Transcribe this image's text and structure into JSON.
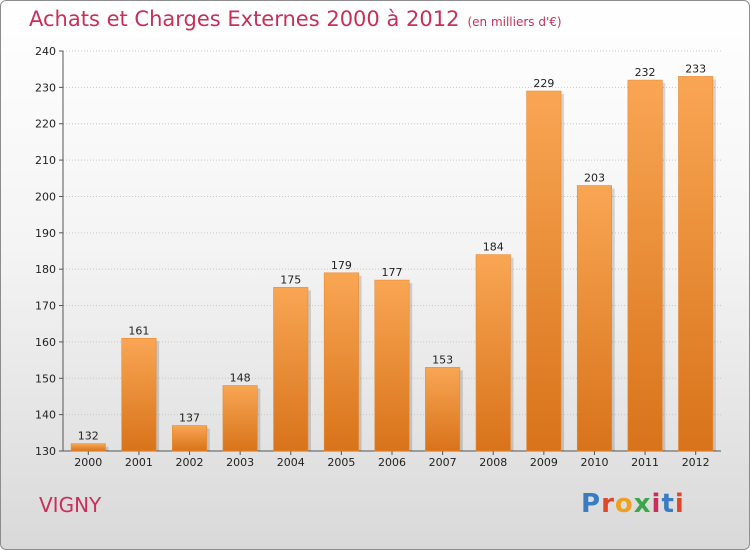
{
  "header": {
    "title": "Achats et Charges Externes 2000 à 2012",
    "subtitle": "(en milliers d'€)"
  },
  "footer": {
    "location": "VIGNY",
    "logo_text": "Proxiti",
    "logo_colors": [
      "#3a7cc4",
      "#e0472a",
      "#f0a020",
      "#3aa84a",
      "#c8305a",
      "#3a7cc4",
      "#e0472a"
    ]
  },
  "colors": {
    "bar_top": "#f9a654",
    "bar_bottom": "#d8731a",
    "title": "#c8305a",
    "grid": "#c8c8c8"
  },
  "chart_data": {
    "type": "bar",
    "title": "Achats et Charges Externes 2000 à 2012",
    "subtitle": "(en milliers d'€)",
    "xlabel": "",
    "ylabel": "",
    "categories": [
      "2000",
      "2001",
      "2002",
      "2003",
      "2004",
      "2005",
      "2006",
      "2007",
      "2008",
      "2009",
      "2010",
      "2011",
      "2012"
    ],
    "values": [
      132,
      161,
      137,
      148,
      175,
      179,
      177,
      153,
      184,
      229,
      203,
      232,
      233
    ],
    "ylim": [
      130,
      240
    ],
    "yticks": [
      130,
      140,
      150,
      160,
      170,
      180,
      190,
      200,
      210,
      220,
      230,
      240
    ],
    "grid": true
  }
}
